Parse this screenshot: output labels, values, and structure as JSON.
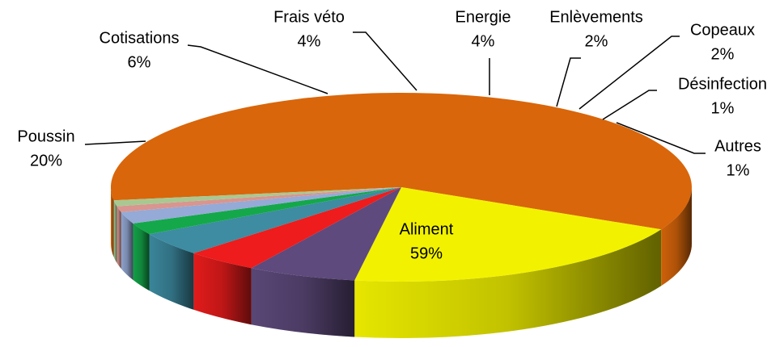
{
  "chart_data": {
    "type": "pie",
    "categories": [
      "Aliment",
      "Poussin",
      "Cotisations",
      "Frais véto",
      "Energie",
      "Enlèvements",
      "Copeaux",
      "Désinfection",
      "Autres"
    ],
    "values": [
      59,
      20,
      6,
      4,
      4,
      2,
      2,
      1,
      1
    ],
    "value_labels": [
      "59%",
      "20%",
      "6%",
      "4%",
      "4%",
      "2%",
      "2%",
      "1%",
      "1%"
    ],
    "colors": [
      "#d9660a",
      "#f2f200",
      "#5e4a7c",
      "#ee1c1c",
      "#3d8ca2",
      "#14a84a",
      "#95aad6",
      "#d9958f",
      "#a9c891"
    ]
  }
}
